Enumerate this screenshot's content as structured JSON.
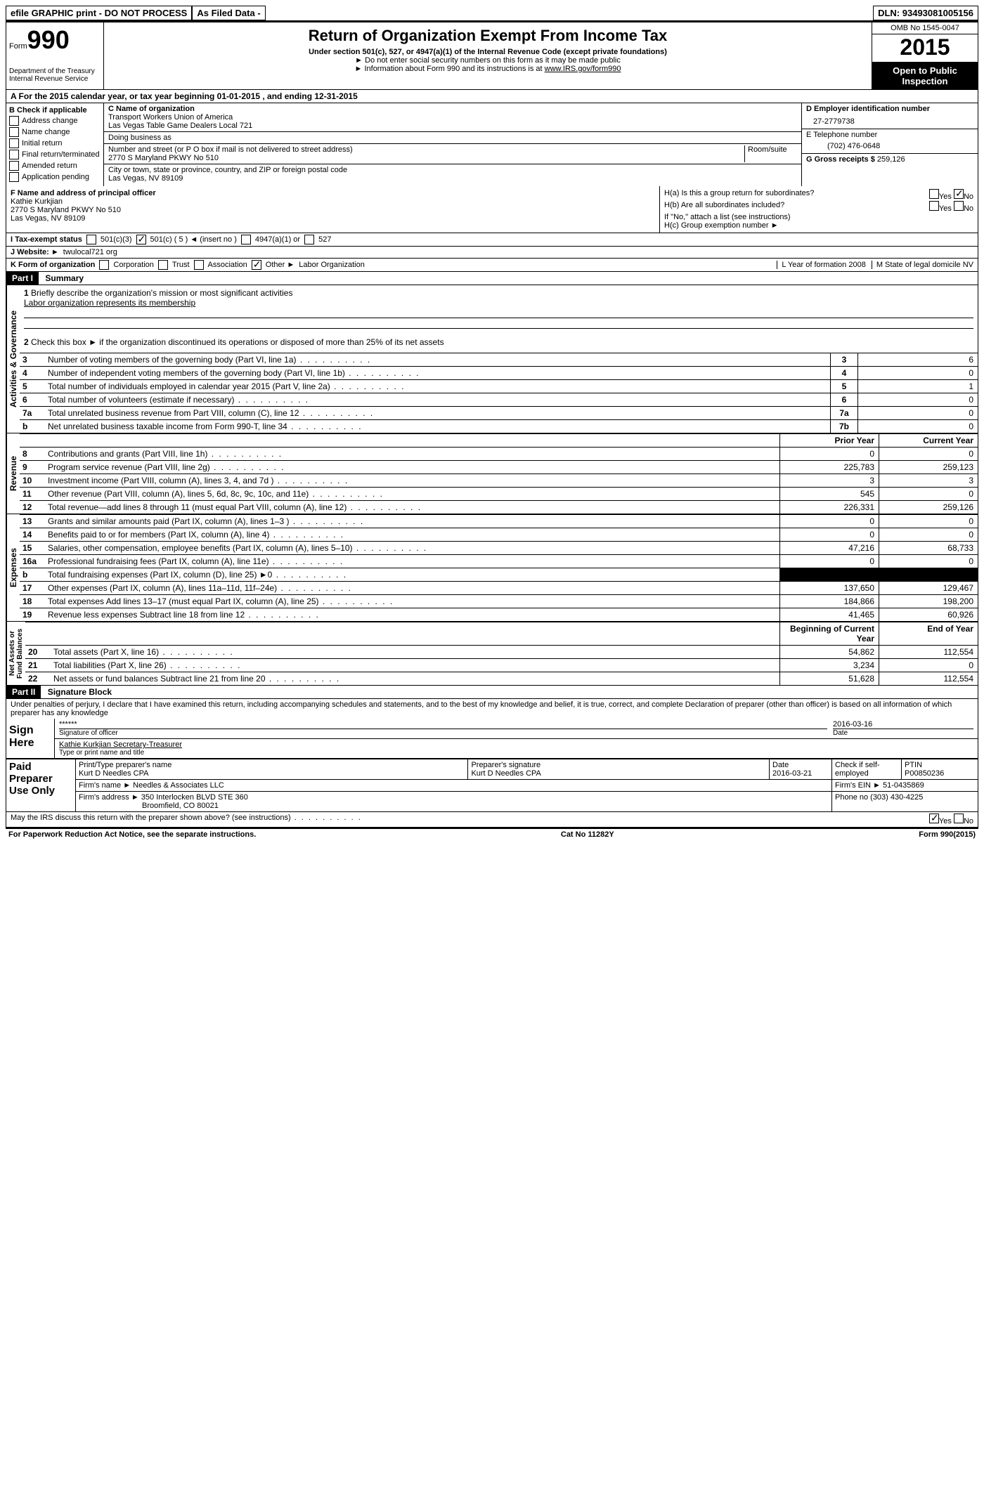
{
  "topbar": {
    "efile": "efile GRAPHIC print - DO NOT PROCESS",
    "asfiled": "As Filed Data -",
    "dln_label": "DLN:",
    "dln": "93493081005156"
  },
  "header": {
    "form_label": "Form",
    "form_no": "990",
    "dept": "Department of the Treasury",
    "irs": "Internal Revenue Service",
    "title": "Return of Organization Exempt From Income Tax",
    "subtitle": "Under section 501(c), 527, or 4947(a)(1) of the Internal Revenue Code (except private foundations)",
    "note1": "► Do not enter social security numbers on this form as it may be made public",
    "note2_prefix": "► Information about Form 990 and its instructions is at ",
    "note2_link": "www.IRS.gov/form990",
    "omb": "OMB No  1545-0047",
    "year": "2015",
    "open": "Open to Public Inspection"
  },
  "row_a": "A   For the 2015 calendar year, or tax year beginning 01-01-2015     , and ending 12-31-2015",
  "col_b": {
    "hdr": "B  Check if applicable",
    "items": [
      "Address change",
      "Name change",
      "Initial return",
      "Final return/terminated",
      "Amended return",
      "Application pending"
    ]
  },
  "col_c": {
    "name_lbl": "C Name of organization",
    "name1": "Transport Workers Union of America",
    "name2": "Las Vegas Table Game Dealers Local 721",
    "dba_lbl": "Doing business as",
    "street_lbl": "Number and street (or P O  box if mail is not delivered to street address)",
    "room_lbl": "Room/suite",
    "street": "2770 S Maryland PKWY No 510",
    "city_lbl": "City or town, state or province, country, and ZIP or foreign postal code",
    "city": "Las Vegas, NV  89109"
  },
  "col_d": {
    "ein_lbl": "D Employer identification number",
    "ein": "27-2779738",
    "tel_lbl": "E Telephone number",
    "tel": "(702) 476-0648",
    "gross_lbl": "G Gross receipts $",
    "gross": "259,126"
  },
  "officer": {
    "lbl": "F    Name and address of principal officer",
    "name": "Kathie Kurkjian",
    "addr1": "2770 S Maryland PKWY No 510",
    "addr2": "Las Vegas, NV  89109",
    "ha": "H(a)  Is this a group return for subordinates?",
    "hb": "H(b)  Are all subordinates included?",
    "hbnote": "If \"No,\" attach a list  (see instructions)",
    "hc": "H(c)   Group exemption number ►",
    "yes": "Yes",
    "no": "No"
  },
  "tax_status": {
    "lbl": "I   Tax-exempt status",
    "opt1": "501(c)(3)",
    "opt2": "501(c) ( 5 ) ◄ (insert no )",
    "opt3": "4947(a)(1) or",
    "opt4": "527"
  },
  "website": {
    "lbl": "J   Website: ►",
    "val": "twulocal721 org"
  },
  "formorg": {
    "lbl": "K Form of organization",
    "opts": [
      "Corporation",
      "Trust",
      "Association",
      "Other ►"
    ],
    "other_val": "Labor Organization",
    "l_lbl": "L Year of formation  2008",
    "m_lbl": "M State of legal domicile  NV"
  },
  "part1": {
    "hdr": "Part I",
    "title": "Summary",
    "q1_lbl": "1",
    "q1": "Briefly describe the organization's mission or most significant activities",
    "q1_val": "Labor organization represents its membership",
    "q2_lbl": "2",
    "q2": "Check this box ►     if the organization discontinued its operations or disposed of more than 25% of its net assets"
  },
  "gov_lines": [
    {
      "n": "3",
      "d": "Number of voting members of the governing body (Part VI, line 1a)",
      "k": "3",
      "v": "6"
    },
    {
      "n": "4",
      "d": "Number of independent voting members of the governing body (Part VI, line 1b)",
      "k": "4",
      "v": "0"
    },
    {
      "n": "5",
      "d": "Total number of individuals employed in calendar year 2015 (Part V, line 2a)",
      "k": "5",
      "v": "1"
    },
    {
      "n": "6",
      "d": "Total number of volunteers (estimate if necessary)",
      "k": "6",
      "v": "0"
    },
    {
      "n": "7a",
      "d": "Total unrelated business revenue from Part VIII, column (C), line 12",
      "k": "7a",
      "v": "0"
    },
    {
      "n": "b",
      "d": "Net unrelated business taxable income from Form 990-T, line 34",
      "k": "7b",
      "v": "0"
    }
  ],
  "rev_hdr": {
    "prior": "Prior Year",
    "curr": "Current Year"
  },
  "rev_lines": [
    {
      "n": "8",
      "d": "Contributions and grants (Part VIII, line 1h)",
      "p": "0",
      "c": "0"
    },
    {
      "n": "9",
      "d": "Program service revenue (Part VIII, line 2g)",
      "p": "225,783",
      "c": "259,123"
    },
    {
      "n": "10",
      "d": "Investment income (Part VIII, column (A), lines 3, 4, and 7d )",
      "p": "3",
      "c": "3"
    },
    {
      "n": "11",
      "d": "Other revenue (Part VIII, column (A), lines 5, 6d, 8c, 9c, 10c, and 11e)",
      "p": "545",
      "c": "0"
    },
    {
      "n": "12",
      "d": "Total revenue—add lines 8 through 11 (must equal Part VIII, column (A), line 12)",
      "p": "226,331",
      "c": "259,126"
    }
  ],
  "exp_lines": [
    {
      "n": "13",
      "d": "Grants and similar amounts paid (Part IX, column (A), lines 1–3 )",
      "p": "0",
      "c": "0"
    },
    {
      "n": "14",
      "d": "Benefits paid to or for members (Part IX, column (A), line 4)",
      "p": "0",
      "c": "0"
    },
    {
      "n": "15",
      "d": "Salaries, other compensation, employee benefits (Part IX, column (A), lines 5–10)",
      "p": "47,216",
      "c": "68,733"
    },
    {
      "n": "16a",
      "d": "Professional fundraising fees (Part IX, column (A), line 11e)",
      "p": "0",
      "c": "0"
    },
    {
      "n": "b",
      "d": "Total fundraising expenses (Part IX, column (D), line 25) ►0",
      "p": "BLACK",
      "c": "BLACK"
    },
    {
      "n": "17",
      "d": "Other expenses (Part IX, column (A), lines 11a–11d, 11f–24e)",
      "p": "137,650",
      "c": "129,467"
    },
    {
      "n": "18",
      "d": "Total expenses  Add lines 13–17 (must equal Part IX, column (A), line 25)",
      "p": "184,866",
      "c": "198,200"
    },
    {
      "n": "19",
      "d": "Revenue less expenses  Subtract line 18 from line 12",
      "p": "41,465",
      "c": "60,926"
    }
  ],
  "net_hdr": {
    "beg": "Beginning of Current Year",
    "end": "End of Year"
  },
  "net_lines": [
    {
      "n": "20",
      "d": "Total assets (Part X, line 16)",
      "p": "54,862",
      "c": "112,554"
    },
    {
      "n": "21",
      "d": "Total liabilities (Part X, line 26)",
      "p": "3,234",
      "c": "0"
    },
    {
      "n": "22",
      "d": "Net assets or fund balances  Subtract line 21 from line 20",
      "p": "51,628",
      "c": "112,554"
    }
  ],
  "part2": {
    "hdr": "Part II",
    "title": "Signature Block",
    "decl": "Under penalties of perjury, I declare that I have examined this return, including accompanying schedules and statements, and to the best of my knowledge and belief, it is true, correct, and complete  Declaration of preparer (other than officer) is based on all information of which preparer has any knowledge"
  },
  "sign": {
    "lbl": "Sign Here",
    "stars": "******",
    "sig_of_officer": "Signature of officer",
    "date_lbl": "Date",
    "date": "2016-03-16",
    "name": "Kathie Kurkjian Secretary-Treasurer",
    "type_lbl": "Type or print name and title"
  },
  "paid": {
    "lbl": "Paid Preparer Use Only",
    "prep_name_lbl": "Print/Type preparer's name",
    "prep_name": "Kurt D Needles CPA",
    "prep_sig_lbl": "Preparer's signature",
    "prep_sig": "Kurt D Needles CPA",
    "date_lbl": "Date",
    "date": "2016-03-21",
    "check_lbl": "Check     if self-employed",
    "ptin_lbl": "PTIN",
    "ptin": "P00850236",
    "firm_name_lbl": "Firm's name     ►",
    "firm_name": "Needles & Associates LLC",
    "firm_ein_lbl": "Firm's EIN ►",
    "firm_ein": "51-0435869",
    "firm_addr_lbl": "Firm's address ►",
    "firm_addr1": "350 Interlocken BLVD STE 360",
    "firm_addr2": "Broomfield, CO  80021",
    "phone_lbl": "Phone no  (303) 430-4225"
  },
  "discuss": "May the IRS discuss this return with the preparer shown above? (see instructions)",
  "discuss_yes": "Yes",
  "discuss_no": "No",
  "footer": {
    "left": "For Paperwork Reduction Act Notice, see the separate instructions.",
    "mid": "Cat No  11282Y",
    "right": "Form 990 (2015)"
  }
}
